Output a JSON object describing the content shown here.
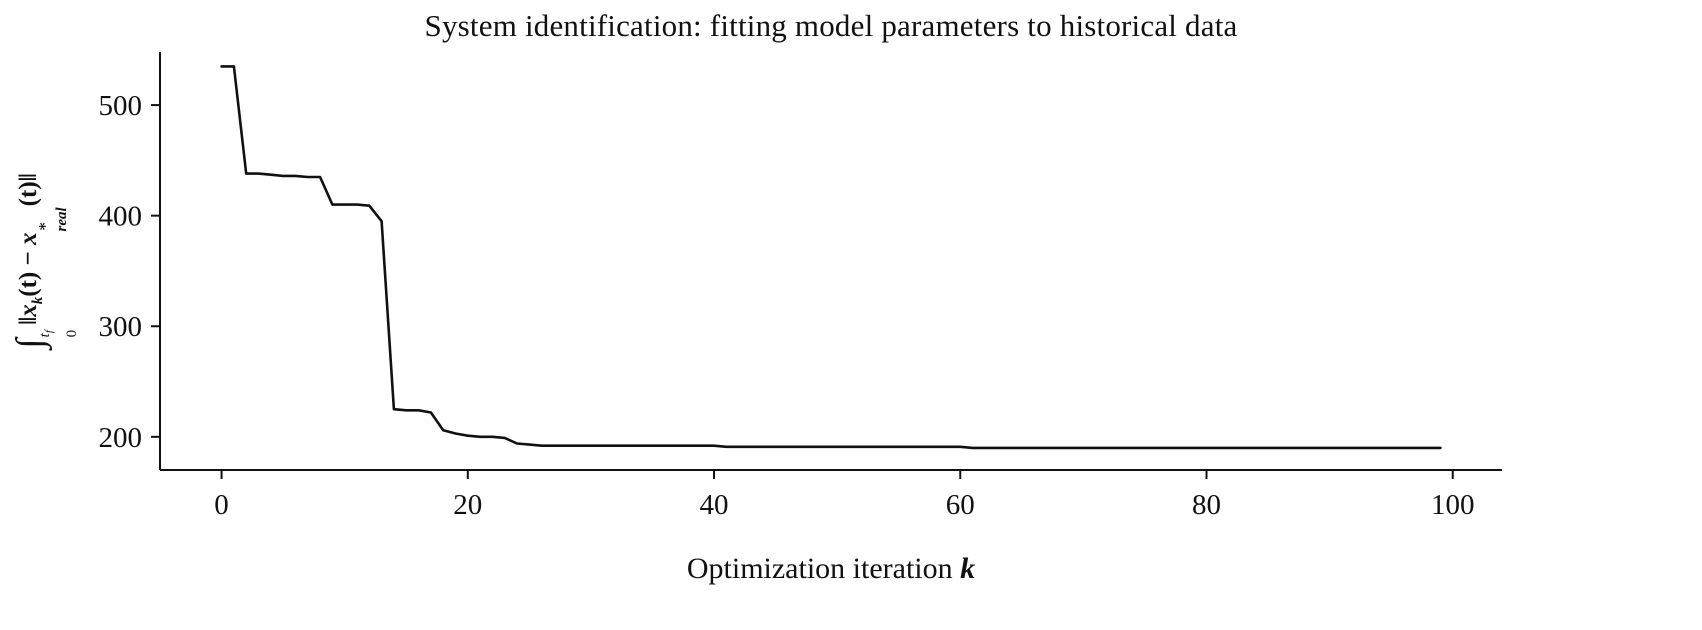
{
  "chart_data": {
    "type": "line",
    "title": "System identification: fitting model parameters to historical data",
    "xlabel": {
      "text": "Optimization iteration ",
      "var": "k"
    },
    "ylabel": {
      "plain_text": "∫₀^tf ||x_k(t) − x*_real(t)||",
      "parts": {
        "int_sign": "∫",
        "sup_t": "t",
        "sup_f": "f",
        "sub_0": "0",
        "norm_open": "‖",
        "x1": "x",
        "x1_sub": "k",
        "mid": "(t) − ",
        "x2": "x",
        "x2_sup": "∗",
        "x2_sub": "real",
        "tail": "(t)",
        "norm_close": "‖"
      }
    },
    "x_range": [
      0,
      99
    ],
    "y": [
      535,
      535,
      438,
      438,
      437,
      436,
      436,
      435,
      435,
      410,
      410,
      410,
      409,
      395,
      225,
      224,
      224,
      222,
      206,
      203,
      201,
      200,
      200,
      199,
      194,
      193,
      192,
      192,
      192,
      192,
      192,
      192,
      192,
      192,
      192,
      192,
      192,
      192,
      192,
      192,
      192,
      191,
      191,
      191,
      191,
      191,
      191,
      191,
      191,
      191,
      191,
      191,
      191,
      191,
      191,
      191,
      191,
      191,
      191,
      191,
      191,
      190,
      190,
      190,
      190,
      190,
      190,
      190,
      190,
      190,
      190,
      190,
      190,
      190,
      190,
      190,
      190,
      190,
      190,
      190,
      190,
      190,
      190,
      190,
      190,
      190,
      190,
      190,
      190,
      190,
      190,
      190,
      190,
      190,
      190,
      190,
      190,
      190,
      190,
      190
    ],
    "xlim": [
      -5,
      104
    ],
    "ylim": [
      170,
      548
    ],
    "xticks": [
      0,
      20,
      40,
      60,
      80,
      100
    ],
    "yticks": [
      200,
      300,
      400,
      500
    ],
    "line_color": "#111111",
    "line_width": 2.6,
    "axis_color": "#111111",
    "tick_label_color": "#111111",
    "grid": false,
    "legend": null
  }
}
